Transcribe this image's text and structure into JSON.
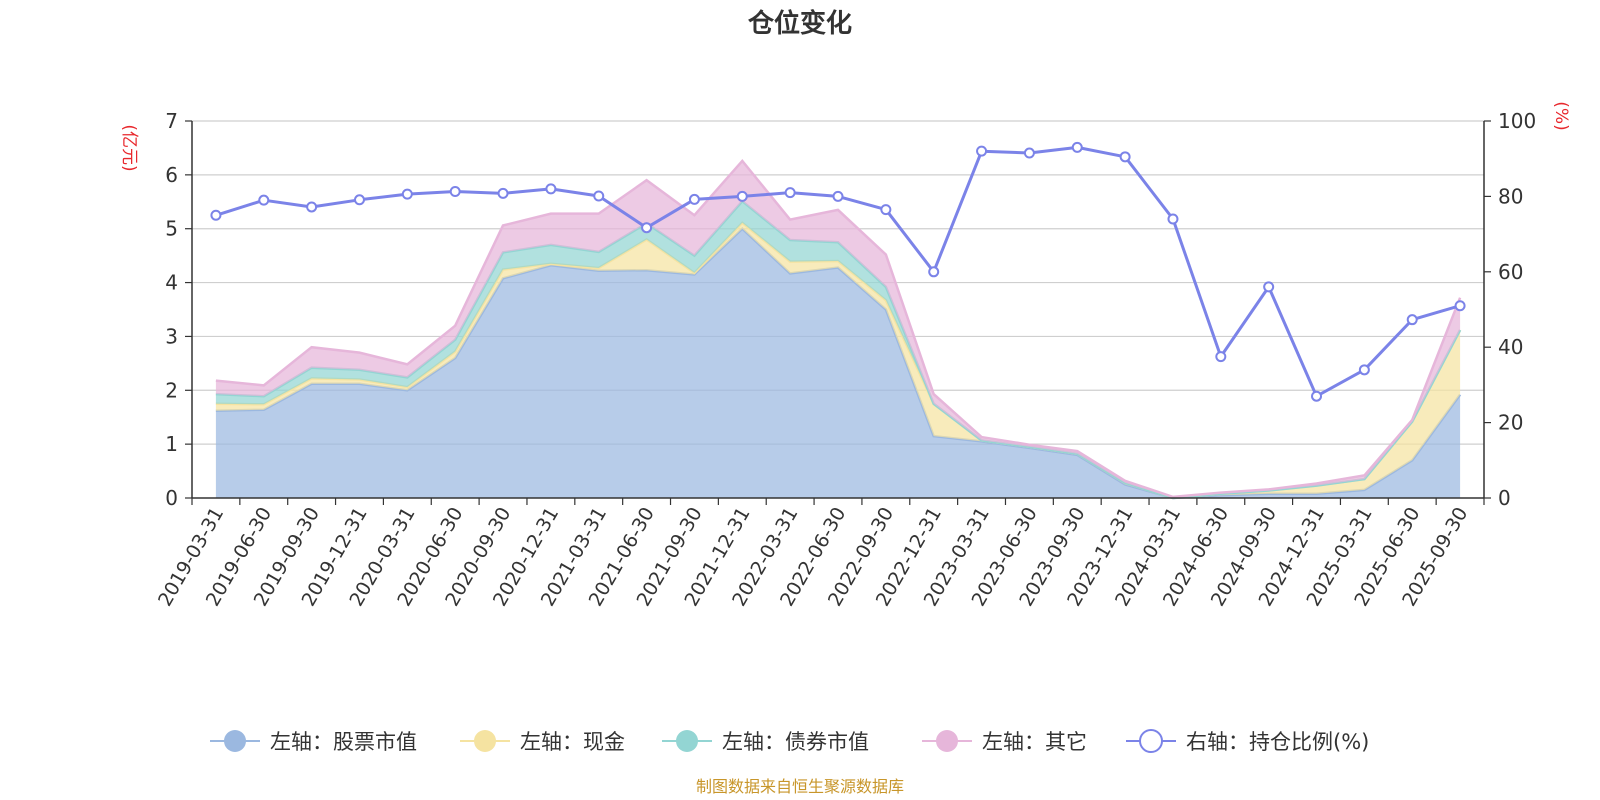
{
  "chart_data": {
    "type": "area",
    "title": "仓位变化",
    "left_axis_label": "(亿元)",
    "right_axis_label": "(%)",
    "left_ylim": [
      0,
      7
    ],
    "left_ticks": [
      0,
      1,
      2,
      3,
      4,
      5,
      6,
      7
    ],
    "right_ylim": [
      0,
      100
    ],
    "right_ticks": [
      0,
      20,
      40,
      60,
      80,
      100
    ],
    "categories": [
      "2019-03-31",
      "2019-06-30",
      "2019-09-30",
      "2019-12-31",
      "2020-03-31",
      "2020-06-30",
      "2020-09-30",
      "2020-12-31",
      "2021-03-31",
      "2021-06-30",
      "2021-09-30",
      "2021-12-31",
      "2022-03-31",
      "2022-06-30",
      "2022-09-30",
      "2022-12-31",
      "2023-03-31",
      "2023-06-30",
      "2023-09-30",
      "2023-12-31",
      "2024-03-31",
      "2024-06-30",
      "2024-09-30",
      "2024-12-31",
      "2025-03-31",
      "2025-06-30",
      "2025-09-30"
    ],
    "series": [
      {
        "name": "左轴：股票市值",
        "axis": "left",
        "stack": true,
        "color": "#9bb8e0",
        "values": [
          1.62,
          1.64,
          2.12,
          2.12,
          2.0,
          2.6,
          4.08,
          4.32,
          4.22,
          4.23,
          4.15,
          5.0,
          4.17,
          4.28,
          3.5,
          1.15,
          1.05,
          0.93,
          0.8,
          0.25,
          0.0,
          0.05,
          0.08,
          0.08,
          0.15,
          0.7,
          1.92
        ]
      },
      {
        "name": "左轴：现金",
        "axis": "left",
        "stack": true,
        "color": "#f5e3a1",
        "values": [
          0.13,
          0.1,
          0.1,
          0.08,
          0.06,
          0.12,
          0.16,
          0.03,
          0.05,
          0.57,
          0.03,
          0.11,
          0.22,
          0.12,
          0.17,
          0.6,
          0.02,
          0.02,
          0.02,
          0.03,
          0.0,
          0.03,
          0.06,
          0.15,
          0.2,
          0.72,
          1.2
        ]
      },
      {
        "name": "左轴：债券市值",
        "axis": "left",
        "stack": true,
        "color": "#93d5d3",
        "values": [
          0.18,
          0.15,
          0.2,
          0.18,
          0.18,
          0.22,
          0.32,
          0.35,
          0.3,
          0.3,
          0.32,
          0.4,
          0.4,
          0.35,
          0.25,
          0.0,
          0.0,
          0.0,
          0.0,
          0.0,
          0.0,
          0.0,
          0.0,
          0.0,
          0.0,
          0.0,
          0.0
        ]
      },
      {
        "name": "左轴：其它",
        "axis": "left",
        "stack": true,
        "color": "#e6b6da",
        "values": [
          0.25,
          0.2,
          0.38,
          0.32,
          0.24,
          0.26,
          0.5,
          0.58,
          0.71,
          0.8,
          0.75,
          0.75,
          0.38,
          0.6,
          0.6,
          0.18,
          0.06,
          0.04,
          0.05,
          0.04,
          0.02,
          0.02,
          0.02,
          0.04,
          0.07,
          0.03,
          0.6
        ]
      },
      {
        "name": "右轴：持仓比例(%)",
        "axis": "right",
        "stack": false,
        "color": "#7b83e8",
        "values": [
          75.0,
          79.0,
          77.2,
          79.1,
          80.6,
          81.3,
          80.8,
          82.0,
          80.1,
          71.7,
          79.2,
          80.0,
          81.0,
          80.0,
          76.5,
          60.0,
          92.0,
          91.5,
          93.0,
          90.5,
          74.0,
          37.5,
          56.0,
          27.0,
          34.0,
          47.3,
          51.0
        ]
      }
    ],
    "source_note": "制图数据来自恒生聚源数据库"
  }
}
